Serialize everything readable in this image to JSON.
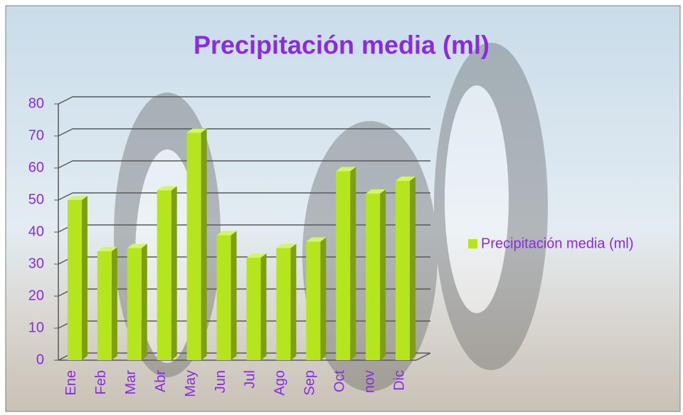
{
  "chart_data": {
    "type": "bar3d",
    "title": "Precipitación media (ml)",
    "categories": [
      "Ene",
      "Feb",
      "Mar",
      "Abr",
      "May",
      "Jun",
      "Jul",
      "Ago",
      "Sep",
      "Oct",
      "nov",
      "Dic"
    ],
    "series": [
      {
        "name": "Precipitación media (ml)",
        "color": "#b5e61d",
        "values": [
          50,
          34,
          35,
          53,
          71,
          39,
          32,
          35,
          37,
          59,
          52,
          56
        ]
      }
    ],
    "ylim": [
      0,
      80
    ],
    "yticks": [
      0,
      10,
      20,
      30,
      40,
      50,
      60,
      70,
      80
    ],
    "grid": true,
    "legend": "right"
  }
}
